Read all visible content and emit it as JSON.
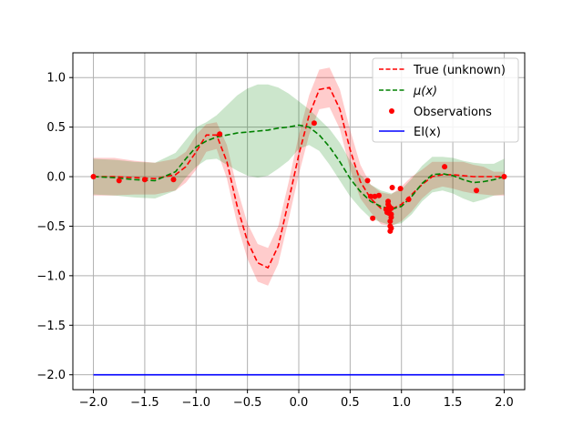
{
  "chart_data": {
    "type": "line",
    "xlim": [
      -2.2,
      2.2
    ],
    "ylim": [
      -2.15,
      1.25
    ],
    "xticks": [
      -2.0,
      -1.5,
      -1.0,
      -0.5,
      0.0,
      0.5,
      1.0,
      1.5,
      2.0
    ],
    "xtick_labels": [
      "−2.0",
      "−1.5",
      "−1.0",
      "−0.5",
      "0.0",
      "0.5",
      "1.0",
      "1.5",
      "2.0"
    ],
    "yticks": [
      1.0,
      0.5,
      0.0,
      -0.5,
      -1.0,
      -1.5,
      -2.0
    ],
    "ytick_labels": [
      "1.0",
      "0.5",
      "0.0",
      "−0.5",
      "−1.0",
      "−1.5",
      "−2.0"
    ],
    "grid": true,
    "legend_position": "top-right",
    "legend": [
      {
        "label": "True (unknown)",
        "color": "#ff0000",
        "style": "dashed-line"
      },
      {
        "label": "μ(x)",
        "color": "#008000",
        "style": "dashed-line"
      },
      {
        "label": "Observations",
        "color": "#ff0000",
        "style": "marker"
      },
      {
        "label": "EI(x)",
        "color": "#0000ff",
        "style": "solid-line"
      }
    ],
    "series": [
      {
        "name": "True (unknown)",
        "color": "#ff0000",
        "dash": true,
        "x": [
          -2.0,
          -1.8,
          -1.6,
          -1.4,
          -1.2,
          -1.1,
          -1.0,
          -0.9,
          -0.8,
          -0.7,
          -0.6,
          -0.5,
          -0.4,
          -0.3,
          -0.2,
          -0.1,
          0.0,
          0.1,
          0.2,
          0.3,
          0.4,
          0.5,
          0.6,
          0.7,
          0.8,
          0.9,
          1.0,
          1.1,
          1.2,
          1.3,
          1.4,
          1.5,
          1.6,
          1.7,
          1.8,
          1.9,
          2.0
        ],
        "y": [
          0.0,
          0.0,
          -0.01,
          -0.02,
          0.02,
          0.1,
          0.25,
          0.42,
          0.42,
          0.15,
          -0.3,
          -0.65,
          -0.87,
          -0.92,
          -0.7,
          -0.25,
          0.22,
          0.62,
          0.88,
          0.9,
          0.68,
          0.27,
          -0.05,
          -0.22,
          -0.32,
          -0.33,
          -0.28,
          -0.18,
          -0.08,
          0.0,
          0.02,
          0.02,
          0.01,
          0.0,
          0.0,
          0.0,
          0.0
        ]
      },
      {
        "name": "μ(x)",
        "color": "#008000",
        "dash": true,
        "x": [
          -2.0,
          -1.8,
          -1.6,
          -1.4,
          -1.2,
          -1.1,
          -1.0,
          -0.9,
          -0.8,
          -0.7,
          -0.6,
          -0.5,
          -0.4,
          -0.3,
          -0.2,
          -0.1,
          0.0,
          0.1,
          0.2,
          0.3,
          0.4,
          0.5,
          0.6,
          0.7,
          0.8,
          0.9,
          1.0,
          1.1,
          1.2,
          1.3,
          1.4,
          1.5,
          1.6,
          1.7,
          1.8,
          1.9,
          2.0
        ],
        "y": [
          0.0,
          -0.01,
          -0.03,
          -0.04,
          0.05,
          0.18,
          0.3,
          0.36,
          0.4,
          0.42,
          0.44,
          0.45,
          0.46,
          0.47,
          0.49,
          0.5,
          0.52,
          0.5,
          0.42,
          0.3,
          0.15,
          -0.02,
          -0.15,
          -0.25,
          -0.3,
          -0.33,
          -0.3,
          -0.2,
          -0.07,
          0.02,
          0.03,
          0.01,
          -0.03,
          -0.06,
          -0.05,
          -0.03,
          0.0
        ]
      },
      {
        "name": "EI(x)",
        "color": "#0000ff",
        "dash": false,
        "x": [
          -2.0,
          2.0
        ],
        "y": [
          -2.0,
          -2.0
        ]
      }
    ],
    "bands": [
      {
        "of": "True (unknown)",
        "color": "#ff0000",
        "opacity": 0.2,
        "x": [
          -2.0,
          -1.8,
          -1.6,
          -1.4,
          -1.2,
          -1.1,
          -1.0,
          -0.9,
          -0.8,
          -0.7,
          -0.6,
          -0.5,
          -0.4,
          -0.3,
          -0.2,
          -0.1,
          0.0,
          0.1,
          0.2,
          0.3,
          0.4,
          0.5,
          0.6,
          0.7,
          0.8,
          0.9,
          1.0,
          1.1,
          1.2,
          1.3,
          1.4,
          1.5,
          1.6,
          1.7,
          1.8,
          1.9,
          2.0
        ],
        "upper": [
          0.19,
          0.19,
          0.16,
          0.14,
          0.18,
          0.25,
          0.42,
          0.53,
          0.55,
          0.32,
          -0.12,
          -0.47,
          -0.68,
          -0.72,
          -0.5,
          -0.06,
          0.42,
          0.82,
          1.08,
          1.1,
          0.88,
          0.47,
          0.12,
          -0.08,
          -0.16,
          -0.18,
          -0.1,
          0.0,
          0.07,
          0.15,
          0.15,
          0.15,
          0.15,
          0.12,
          0.1,
          0.05,
          0.05
        ],
        "lower": [
          -0.19,
          -0.19,
          -0.18,
          -0.18,
          -0.14,
          -0.06,
          0.07,
          0.25,
          0.28,
          -0.02,
          -0.48,
          -0.83,
          -1.06,
          -1.1,
          -0.88,
          -0.44,
          0.02,
          0.42,
          0.68,
          0.7,
          0.48,
          0.07,
          -0.22,
          -0.36,
          -0.48,
          -0.5,
          -0.45,
          -0.35,
          -0.22,
          -0.13,
          -0.1,
          -0.12,
          -0.15,
          -0.17,
          -0.18,
          -0.19,
          -0.19
        ]
      },
      {
        "of": "μ(x)",
        "color": "#008000",
        "opacity": 0.2,
        "x": [
          -2.0,
          -1.8,
          -1.6,
          -1.4,
          -1.2,
          -1.1,
          -1.0,
          -0.9,
          -0.8,
          -0.7,
          -0.6,
          -0.5,
          -0.4,
          -0.3,
          -0.2,
          -0.1,
          0.0,
          0.1,
          0.2,
          0.3,
          0.4,
          0.5,
          0.6,
          0.7,
          0.8,
          0.9,
          1.0,
          1.1,
          1.2,
          1.3,
          1.4,
          1.5,
          1.6,
          1.7,
          1.8,
          1.9,
          2.0
        ],
        "upper": [
          0.18,
          0.17,
          0.15,
          0.14,
          0.24,
          0.37,
          0.5,
          0.55,
          0.62,
          0.72,
          0.82,
          0.89,
          0.93,
          0.93,
          0.9,
          0.84,
          0.76,
          0.68,
          0.58,
          0.48,
          0.34,
          0.16,
          0.02,
          -0.08,
          -0.14,
          -0.17,
          -0.13,
          -0.02,
          0.11,
          0.2,
          0.2,
          0.19,
          0.16,
          0.14,
          0.13,
          0.13,
          0.18
        ],
        "lower": [
          -0.18,
          -0.19,
          -0.21,
          -0.22,
          -0.14,
          -0.01,
          0.1,
          0.17,
          0.18,
          0.12,
          0.06,
          0.01,
          -0.01,
          0.01,
          0.08,
          0.16,
          0.28,
          0.32,
          0.26,
          0.12,
          -0.04,
          -0.2,
          -0.32,
          -0.42,
          -0.46,
          -0.49,
          -0.47,
          -0.38,
          -0.25,
          -0.16,
          -0.14,
          -0.17,
          -0.22,
          -0.26,
          -0.23,
          -0.19,
          -0.18
        ]
      }
    ],
    "observations": {
      "name": "Observations",
      "color": "#ff0000",
      "x": [
        -2.0,
        -1.75,
        -1.5,
        -1.22,
        -0.77,
        0.15,
        0.67,
        0.7,
        0.72,
        0.78,
        0.74,
        0.85,
        0.86,
        0.87,
        0.87,
        0.88,
        0.88,
        0.88,
        0.89,
        0.89,
        0.89,
        0.9,
        0.9,
        0.9,
        0.9,
        0.91,
        0.99,
        1.07,
        1.42,
        1.73,
        2.0
      ],
      "y": [
        0.0,
        -0.04,
        -0.03,
        -0.03,
        0.43,
        0.54,
        -0.04,
        -0.2,
        -0.42,
        -0.19,
        -0.2,
        -0.33,
        -0.36,
        -0.28,
        -0.25,
        -0.3,
        -0.34,
        -0.37,
        -0.45,
        -0.5,
        -0.55,
        -0.32,
        -0.38,
        -0.41,
        -0.52,
        -0.11,
        -0.12,
        -0.23,
        0.1,
        -0.14,
        0.0
      ]
    }
  }
}
